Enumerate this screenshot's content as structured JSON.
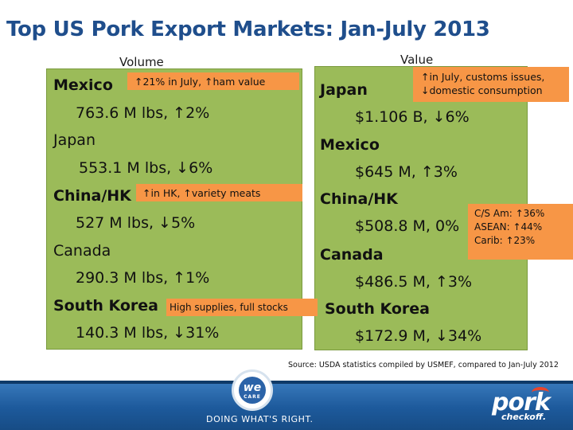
{
  "title": "Top US Pork Export Markets: Jan-July 2013",
  "volume": {
    "header": "Volume",
    "items": [
      {
        "country": "Mexico",
        "value": "763.6 M lbs, ↑2%"
      },
      {
        "country": "Japan",
        "value": "553.1 M lbs, ↓6%"
      },
      {
        "country": "China/HK",
        "value": "527 M lbs, ↓5%"
      },
      {
        "country": "Canada",
        "value": "290.3 M lbs, ↑1%"
      },
      {
        "country": "South Korea",
        "value": "140.3 M lbs, ↓31%"
      }
    ]
  },
  "value_col": {
    "header": "Value",
    "items": [
      {
        "country": "Japan",
        "value": "$1.106 B, ↓6%"
      },
      {
        "country": "Mexico",
        "value": "$645 M, ↑3%"
      },
      {
        "country": "China/HK",
        "value": "$508.8 M, 0%"
      },
      {
        "country": "Canada",
        "value": "$486.5 M, ↑3%"
      },
      {
        "country": "South Korea",
        "value": "$172.9 M, ↓34%"
      }
    ]
  },
  "notes": {
    "mexico": "↑21% in July, ↑ham value",
    "china": "↑in HK, ↑variety meats",
    "korea": "High supplies, full stocks",
    "japan_line1": "↑in July, customs issues,",
    "japan_line2": "↓domestic consumption",
    "canada_line1": "C/S Am: ↑36%",
    "canada_line2": "ASEAN: ↑44%",
    "canada_line3": "Carib: ↑23%"
  },
  "source": "Source: USDA statistics compiled by USMEF, compared to Jan-July 2012",
  "banner": {
    "left_logo_text": "we",
    "left_logo_sub": "CARE",
    "tagline": "DOING WHAT'S RIGHT.",
    "right_logo_main": "pork",
    "right_logo_sub": "checkoff."
  },
  "colors": {
    "title": "#1f4e8c",
    "box_green": "#9bbb59",
    "note_orange": "#f79646",
    "banner_blue": "#1d5a9c"
  }
}
